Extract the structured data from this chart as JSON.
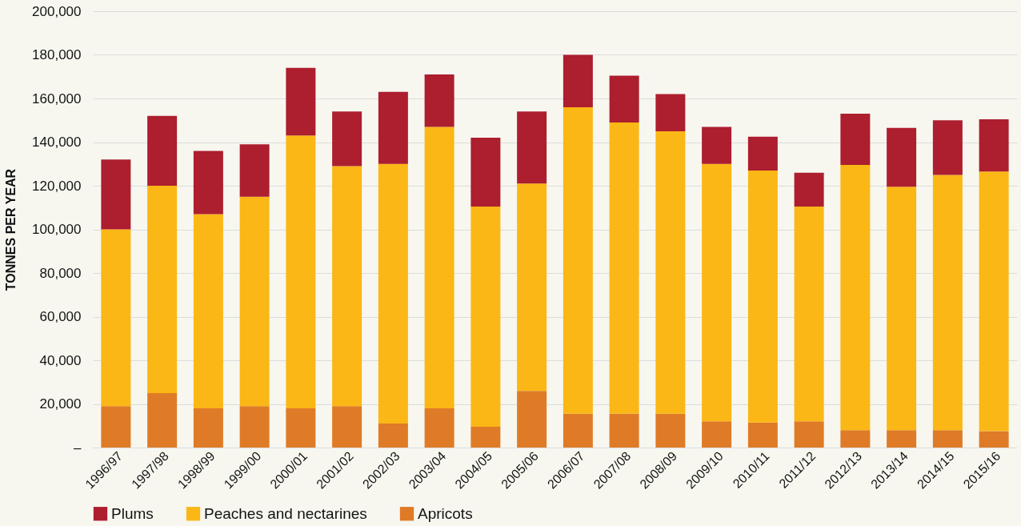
{
  "chart_data": {
    "type": "bar",
    "stacked": true,
    "ylabel": "TONNES PER YEAR",
    "categories": [
      "1996/97",
      "1997/98",
      "1998/99",
      "1999/00",
      "2000/01",
      "2001/02",
      "2002/03",
      "2003/04",
      "2004/05",
      "2005/06",
      "2006/07",
      "2007/08",
      "2008/09",
      "2009/10",
      "2010/11",
      "2011/12",
      "2012/13",
      "2013/14",
      "2014/15",
      "2015/16"
    ],
    "series": [
      {
        "name": "Apricots",
        "color": "#df7b26",
        "values": [
          19000,
          25000,
          18000,
          19000,
          18000,
          19000,
          11000,
          18000,
          9500,
          26000,
          15500,
          15500,
          15500,
          12000,
          11500,
          12000,
          8000,
          8000,
          8000,
          7500
        ]
      },
      {
        "name": "Peaches and nectarines",
        "color": "#fbb715",
        "values": [
          81000,
          95000,
          89000,
          96000,
          125000,
          110000,
          119000,
          129000,
          101000,
          95000,
          140500,
          133500,
          129500,
          118000,
          115500,
          98500,
          121500,
          111500,
          117000,
          119000
        ]
      },
      {
        "name": "Plums",
        "color": "#ad1e2f",
        "values": [
          32000,
          32000,
          29000,
          24000,
          31000,
          25000,
          33000,
          24000,
          31500,
          33000,
          24000,
          21500,
          17000,
          17000,
          15500,
          15500,
          23500,
          27000,
          25000,
          24000
        ]
      }
    ],
    "ylim": [
      0,
      200000
    ],
    "yticks": [
      {
        "value": 0,
        "label": "–"
      },
      {
        "value": 20000,
        "label": "20,000"
      },
      {
        "value": 40000,
        "label": "40,000"
      },
      {
        "value": 60000,
        "label": "60,000"
      },
      {
        "value": 80000,
        "label": "80,000"
      },
      {
        "value": 100000,
        "label": "100,000"
      },
      {
        "value": 120000,
        "label": "120,000"
      },
      {
        "value": 140000,
        "label": "140,000"
      },
      {
        "value": 160000,
        "label": "160,000"
      },
      {
        "value": 180000,
        "label": "180,000"
      },
      {
        "value": 200000,
        "label": "200,000"
      }
    ],
    "grid": "y",
    "legend": "bottom"
  }
}
